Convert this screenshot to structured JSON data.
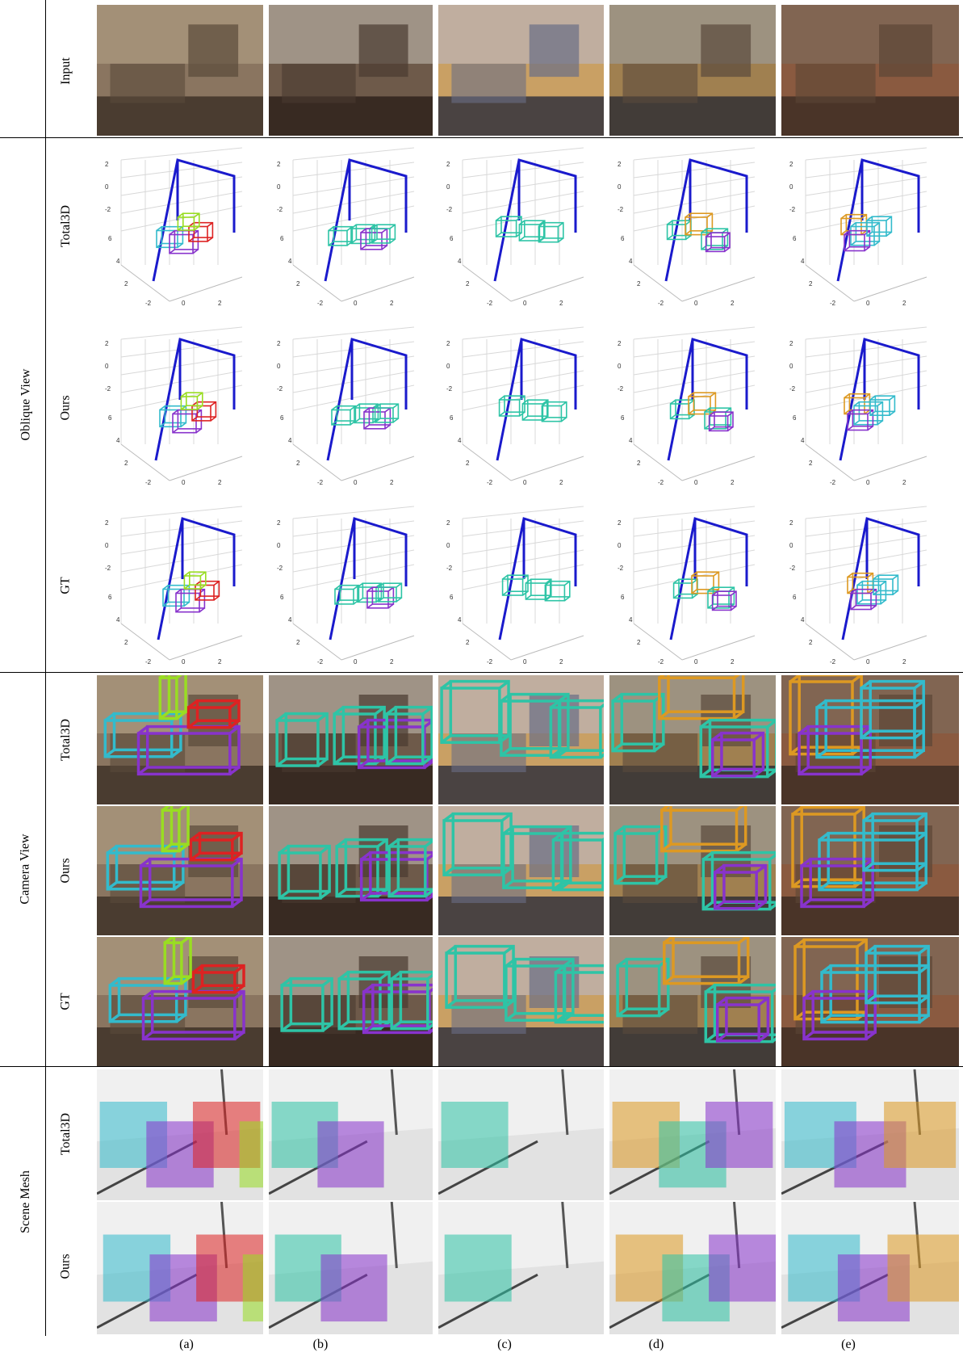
{
  "groups": [
    {
      "id": "input",
      "label": ""
    },
    {
      "id": "oblique",
      "label": "Oblique View"
    },
    {
      "id": "camera",
      "label": "Camera View"
    },
    {
      "id": "mesh",
      "label": "Scene Mesh"
    }
  ],
  "rows": [
    {
      "key": "input",
      "label": "Input",
      "type": "photo"
    },
    {
      "key": "ob-total3d",
      "label": "Total3D",
      "type": "plot",
      "ticks": {
        "z": [
          "2",
          "0",
          "-2"
        ],
        "y": [
          "6",
          "4",
          "2"
        ],
        "x": [
          "-2",
          "0",
          "2"
        ]
      }
    },
    {
      "key": "ob-ours",
      "label": "Ours",
      "type": "plot",
      "ticks": {
        "z": [
          "2",
          "0",
          "-2"
        ],
        "y": [
          "6",
          "4",
          "2"
        ],
        "x": [
          "-2",
          "0",
          "2"
        ]
      }
    },
    {
      "key": "ob-gt",
      "label": "GT",
      "type": "plot",
      "ticks": {
        "z": [
          "2",
          "0",
          "-2"
        ],
        "y": [
          "6",
          "4",
          "2"
        ],
        "x": [
          "-2",
          "0",
          "2"
        ]
      }
    },
    {
      "key": "cam-total3d",
      "label": "Total3D",
      "type": "camera"
    },
    {
      "key": "cam-ours",
      "label": "Ours",
      "type": "camera"
    },
    {
      "key": "cam-gt",
      "label": "GT",
      "type": "camera"
    },
    {
      "key": "mesh-total3d",
      "label": "Total3D",
      "type": "mesh"
    },
    {
      "key": "mesh-ours",
      "label": "Ours",
      "type": "mesh"
    }
  ],
  "columns": [
    "(a)",
    "(b)",
    "(c)",
    "(d)",
    "(e)"
  ],
  "colors": {
    "layout": "#1a1acc",
    "cyan": "#33bbcc",
    "teal": "#2ec4a6",
    "purple": "#8833cc",
    "red": "#dd2222",
    "lime": "#99dd22",
    "orange": "#dd9922"
  }
}
